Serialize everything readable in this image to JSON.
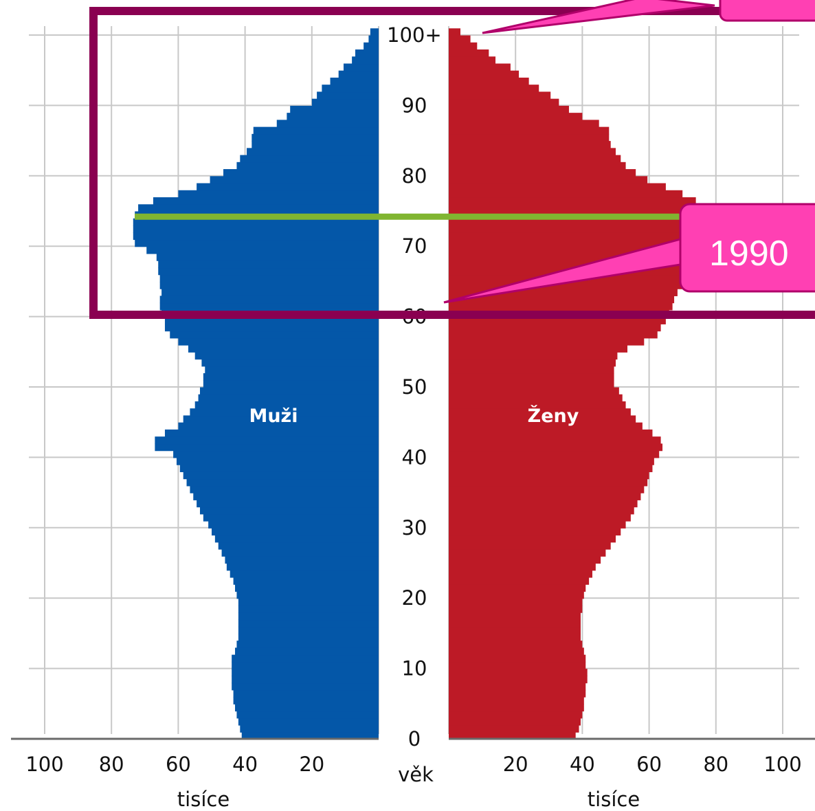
{
  "chart_data": {
    "type": "bar",
    "subtype": "population-pyramid",
    "age_axis_label": "věk",
    "age_tick_labels": [
      "0",
      "10",
      "20",
      "30",
      "40",
      "50",
      "60",
      "70",
      "80",
      "90",
      "100+"
    ],
    "ages": [
      0,
      1,
      2,
      3,
      4,
      5,
      6,
      7,
      8,
      9,
      10,
      11,
      12,
      13,
      14,
      15,
      16,
      17,
      18,
      19,
      20,
      21,
      22,
      23,
      24,
      25,
      26,
      27,
      28,
      29,
      30,
      31,
      32,
      33,
      34,
      35,
      36,
      37,
      38,
      39,
      40,
      41,
      42,
      43,
      44,
      45,
      46,
      47,
      48,
      49,
      50,
      51,
      52,
      53,
      54,
      55,
      56,
      57,
      58,
      59,
      60,
      61,
      62,
      63,
      64,
      65,
      66,
      67,
      68,
      69,
      70,
      71,
      72,
      73,
      74,
      75,
      76,
      77,
      78,
      79,
      80,
      81,
      82,
      83,
      84,
      85,
      86,
      87,
      88,
      89,
      90,
      91,
      92,
      93,
      94,
      95,
      96,
      97,
      98,
      99,
      100
    ],
    "xlim": [
      0,
      100
    ],
    "x_tick_labels": [
      "100",
      "80",
      "60",
      "40",
      "20"
    ],
    "x_tick_labels_right": [
      "20",
      "40",
      "60",
      "80",
      "100"
    ],
    "x_unit_label": "tisíce",
    "grid": true,
    "series": [
      {
        "name": "Muži",
        "side": "left",
        "color": "#0457a8",
        "values": [
          41.0,
          41.5,
          42.0,
          42.5,
          43.0,
          43.5,
          43.5,
          44.0,
          44.0,
          44.0,
          44.0,
          44.0,
          43.0,
          42.5,
          42.0,
          42.0,
          42.0,
          42.0,
          42.0,
          42.0,
          42.5,
          43.0,
          43.5,
          44.5,
          45.5,
          46.0,
          47.0,
          48.0,
          49.0,
          50.0,
          51.0,
          52.5,
          53.5,
          54.5,
          55.5,
          56.5,
          57.5,
          58.5,
          59.5,
          60.5,
          61.5,
          67.0,
          67.0,
          64.0,
          60.0,
          58.5,
          56.5,
          55.0,
          54.0,
          53.5,
          52.5,
          52.5,
          52.0,
          53.0,
          55.0,
          57.0,
          60.0,
          62.5,
          64.0,
          64.0,
          65.0,
          65.5,
          65.5,
          65.0,
          65.5,
          65.5,
          66.0,
          66.0,
          66.5,
          69.5,
          73.0,
          73.5,
          73.5,
          73.5,
          73.0,
          72.0,
          67.5,
          60.0,
          54.5,
          50.5,
          46.5,
          42.5,
          41.5,
          39.5,
          38.0,
          38.0,
          37.5,
          30.5,
          27.5,
          26.5,
          20.0,
          18.5,
          17.0,
          14.5,
          12.0,
          10.5,
          8.0,
          7.0,
          4.5,
          3.0,
          2.5
        ]
      },
      {
        "name": "Ženy",
        "side": "right",
        "color": "#bd1a26",
        "values": [
          38.0,
          39.0,
          39.5,
          40.0,
          40.5,
          40.5,
          41.0,
          41.0,
          41.5,
          41.5,
          41.0,
          41.0,
          40.5,
          40.0,
          39.5,
          39.5,
          39.5,
          39.5,
          40.0,
          40.0,
          40.5,
          41.0,
          42.0,
          43.0,
          44.0,
          45.5,
          47.0,
          48.5,
          50.0,
          51.5,
          53.0,
          54.5,
          55.5,
          56.5,
          57.5,
          58.5,
          59.5,
          60.0,
          61.0,
          61.5,
          63.0,
          64.0,
          63.5,
          61.0,
          58.0,
          56.0,
          54.5,
          53.0,
          52.0,
          51.0,
          49.5,
          49.5,
          49.5,
          50.0,
          50.5,
          53.5,
          58.5,
          62.5,
          63.5,
          65.0,
          66.0,
          67.0,
          67.5,
          68.5,
          70.0,
          71.0,
          72.0,
          72.5,
          73.5,
          75.0,
          78.0,
          79.5,
          80.0,
          80.5,
          79.0,
          77.0,
          74.0,
          70.0,
          65.0,
          59.5,
          56.0,
          53.0,
          51.5,
          50.0,
          48.5,
          48.0,
          48.0,
          45.0,
          40.0,
          36.0,
          33.0,
          30.5,
          27.0,
          24.0,
          21.0,
          18.5,
          14.0,
          12.0,
          8.5,
          6.5,
          3.5
        ]
      }
    ],
    "highlight": {
      "age": 74,
      "color": "#80b531"
    },
    "callout": {
      "label": "1990",
      "fill": "#ff40b3",
      "border": "#b0006a",
      "frame_color": "#8a0051"
    }
  }
}
